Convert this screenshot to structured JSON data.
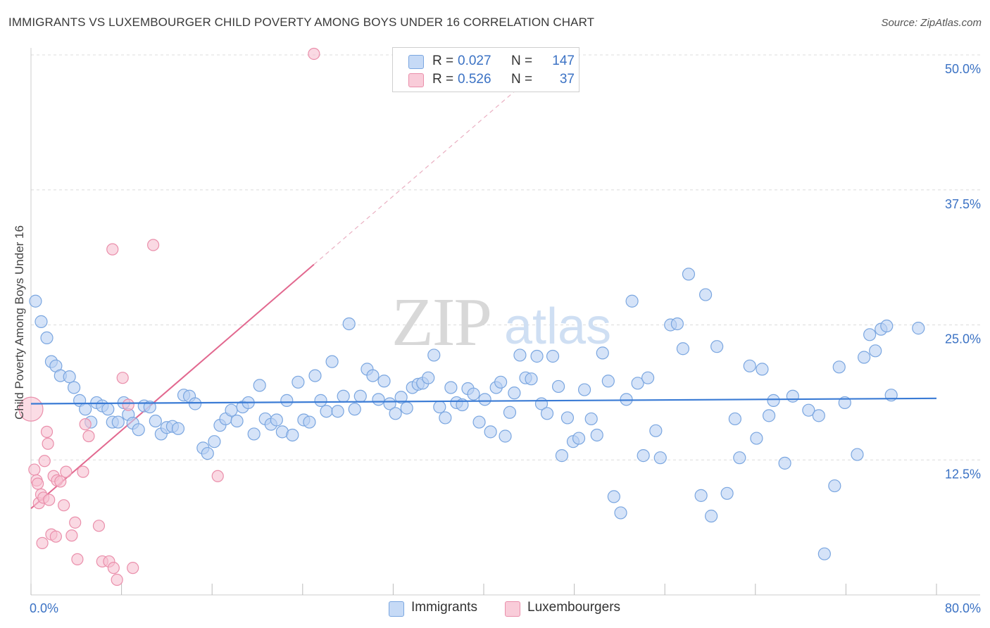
{
  "header": {
    "title": "IMMIGRANTS VS LUXEMBOURGER CHILD POVERTY AMONG BOYS UNDER 16 CORRELATION CHART",
    "source": "Source: ZipAtlas.com"
  },
  "watermark": {
    "zip": "ZIP",
    "atlas": "atlas"
  },
  "legend": {
    "rows": [
      {
        "r_label": "R =",
        "r_value": "0.027",
        "n_label": "N =",
        "n_value": "147"
      },
      {
        "r_label": "R =",
        "r_value": "0.526",
        "n_label": "N =",
        "n_value": "37"
      }
    ]
  },
  "bottom_legend": {
    "immigrants": "Immigrants",
    "luxembourgers": "Luxembourgers"
  },
  "colors": {
    "immigrants_fill": "#b9d1f3",
    "immigrants_stroke": "#7aa6e0",
    "immigrants_line": "#3a7bd5",
    "lux_fill": "#f7c0d0",
    "lux_stroke": "#ea8fab",
    "lux_line": "#e2688f",
    "axis_label": "#3b72c4",
    "grid": "#dcdcdc"
  },
  "chart_data": {
    "type": "scatter",
    "title": "IMMIGRANTS VS LUXEMBOURGER CHILD POVERTY AMONG BOYS UNDER 16 CORRELATION CHART",
    "xlabel": "",
    "ylabel": "Child Poverty Among Boys Under 16",
    "xlim": [
      0,
      80
    ],
    "ylim": [
      0,
      50
    ],
    "x_tick_labels": [
      "0.0%",
      "80.0%"
    ],
    "y_ticks": [
      {
        "value": 12.5,
        "label": "12.5%"
      },
      {
        "value": 25.0,
        "label": "25.0%"
      },
      {
        "value": 37.5,
        "label": "37.5%"
      },
      {
        "value": 50.0,
        "label": "50.0%"
      }
    ],
    "series": [
      {
        "name": "Immigrants",
        "R": 0.027,
        "N": 147,
        "trend": {
          "x": [
            0,
            80
          ],
          "y": [
            17.7,
            18.2
          ]
        },
        "points": [
          [
            0.4,
            27.2
          ],
          [
            0.9,
            25.3
          ],
          [
            1.4,
            23.8
          ],
          [
            1.8,
            21.6
          ],
          [
            2.2,
            21.2
          ],
          [
            2.6,
            20.3
          ],
          [
            3.4,
            20.2
          ],
          [
            3.8,
            19.2
          ],
          [
            4.3,
            18.0
          ],
          [
            4.8,
            17.2
          ],
          [
            5.3,
            16.0
          ],
          [
            5.8,
            17.8
          ],
          [
            6.3,
            17.5
          ],
          [
            6.8,
            17.2
          ],
          [
            7.2,
            16.0
          ],
          [
            7.7,
            16.0
          ],
          [
            8.2,
            17.8
          ],
          [
            8.6,
            16.7
          ],
          [
            9.0,
            15.9
          ],
          [
            9.5,
            15.3
          ],
          [
            10.0,
            17.5
          ],
          [
            10.5,
            17.4
          ],
          [
            11.0,
            16.1
          ],
          [
            11.5,
            14.9
          ],
          [
            12.0,
            15.5
          ],
          [
            12.5,
            15.6
          ],
          [
            13.0,
            15.4
          ],
          [
            13.5,
            18.5
          ],
          [
            14.0,
            18.4
          ],
          [
            14.5,
            17.7
          ],
          [
            15.2,
            13.6
          ],
          [
            15.6,
            13.1
          ],
          [
            16.2,
            14.2
          ],
          [
            16.7,
            15.7
          ],
          [
            17.2,
            16.3
          ],
          [
            17.7,
            17.1
          ],
          [
            18.2,
            16.1
          ],
          [
            18.7,
            17.4
          ],
          [
            19.2,
            17.8
          ],
          [
            19.7,
            14.9
          ],
          [
            20.2,
            19.4
          ],
          [
            20.7,
            16.3
          ],
          [
            21.2,
            15.8
          ],
          [
            21.7,
            16.2
          ],
          [
            22.2,
            15.1
          ],
          [
            22.6,
            18.0
          ],
          [
            23.1,
            14.8
          ],
          [
            23.6,
            19.7
          ],
          [
            24.1,
            16.2
          ],
          [
            24.6,
            16.0
          ],
          [
            25.1,
            20.3
          ],
          [
            25.6,
            18.0
          ],
          [
            26.1,
            17.0
          ],
          [
            26.6,
            21.6
          ],
          [
            27.1,
            17.0
          ],
          [
            27.6,
            18.4
          ],
          [
            28.1,
            25.1
          ],
          [
            28.6,
            17.2
          ],
          [
            29.1,
            18.4
          ],
          [
            29.7,
            20.9
          ],
          [
            30.2,
            20.3
          ],
          [
            30.7,
            18.1
          ],
          [
            31.2,
            19.8
          ],
          [
            31.7,
            17.7
          ],
          [
            32.2,
            16.8
          ],
          [
            32.7,
            18.3
          ],
          [
            33.2,
            17.3
          ],
          [
            33.7,
            19.2
          ],
          [
            34.2,
            19.5
          ],
          [
            34.6,
            19.6
          ],
          [
            35.1,
            20.1
          ],
          [
            35.6,
            22.2
          ],
          [
            36.1,
            17.4
          ],
          [
            36.6,
            16.4
          ],
          [
            37.1,
            19.2
          ],
          [
            37.6,
            17.8
          ],
          [
            38.1,
            17.6
          ],
          [
            38.6,
            19.1
          ],
          [
            39.1,
            18.6
          ],
          [
            39.6,
            16.0
          ],
          [
            40.1,
            18.1
          ],
          [
            40.6,
            15.1
          ],
          [
            41.1,
            19.2
          ],
          [
            41.5,
            19.7
          ],
          [
            41.9,
            14.7
          ],
          [
            42.3,
            16.9
          ],
          [
            42.7,
            18.7
          ],
          [
            43.2,
            22.2
          ],
          [
            43.7,
            20.1
          ],
          [
            44.2,
            20.0
          ],
          [
            44.7,
            22.1
          ],
          [
            45.1,
            17.7
          ],
          [
            45.6,
            16.8
          ],
          [
            46.1,
            22.1
          ],
          [
            46.6,
            19.3
          ],
          [
            46.9,
            12.9
          ],
          [
            47.4,
            16.4
          ],
          [
            47.9,
            14.2
          ],
          [
            48.4,
            14.5
          ],
          [
            48.9,
            19.0
          ],
          [
            49.5,
            16.3
          ],
          [
            50.0,
            14.8
          ],
          [
            50.5,
            22.4
          ],
          [
            51.0,
            19.8
          ],
          [
            51.5,
            9.1
          ],
          [
            52.1,
            7.6
          ],
          [
            52.6,
            18.1
          ],
          [
            53.1,
            27.2
          ],
          [
            53.6,
            19.6
          ],
          [
            54.1,
            12.9
          ],
          [
            54.5,
            20.1
          ],
          [
            55.2,
            15.2
          ],
          [
            55.6,
            12.7
          ],
          [
            56.5,
            25.0
          ],
          [
            57.1,
            25.1
          ],
          [
            57.6,
            22.8
          ],
          [
            58.1,
            29.7
          ],
          [
            59.2,
            9.2
          ],
          [
            59.6,
            27.8
          ],
          [
            60.1,
            7.3
          ],
          [
            60.6,
            23.0
          ],
          [
            61.5,
            9.4
          ],
          [
            62.2,
            16.3
          ],
          [
            62.6,
            12.7
          ],
          [
            63.5,
            21.2
          ],
          [
            64.1,
            14.5
          ],
          [
            64.6,
            20.9
          ],
          [
            65.2,
            16.6
          ],
          [
            65.6,
            18.0
          ],
          [
            66.6,
            12.2
          ],
          [
            67.3,
            18.4
          ],
          [
            68.7,
            17.1
          ],
          [
            69.6,
            16.6
          ],
          [
            70.1,
            3.8
          ],
          [
            71.0,
            10.1
          ],
          [
            71.4,
            21.1
          ],
          [
            71.9,
            17.8
          ],
          [
            73.0,
            13.0
          ],
          [
            73.6,
            22.0
          ],
          [
            74.1,
            24.1
          ],
          [
            74.6,
            22.6
          ],
          [
            75.1,
            24.6
          ],
          [
            75.6,
            24.9
          ],
          [
            76.0,
            18.5
          ],
          [
            78.4,
            24.7
          ]
        ]
      },
      {
        "name": "Luxembourgers",
        "R": 0.526,
        "N": 37,
        "trend": {
          "x": [
            0,
            25
          ],
          "y": [
            8.0,
            30.6
          ]
        },
        "trend_extension": {
          "x": [
            25,
            43.8
          ],
          "y": [
            30.6,
            47.6
          ]
        },
        "points": [
          [
            0.0,
            17.2
          ],
          [
            0.3,
            11.6
          ],
          [
            0.5,
            10.6
          ],
          [
            0.6,
            10.3
          ],
          [
            0.7,
            8.5
          ],
          [
            0.9,
            9.3
          ],
          [
            1.1,
            9.0
          ],
          [
            1.2,
            12.4
          ],
          [
            1.4,
            15.1
          ],
          [
            1.5,
            14.0
          ],
          [
            1.6,
            8.8
          ],
          [
            1.8,
            5.6
          ],
          [
            2.0,
            11.0
          ],
          [
            2.3,
            10.6
          ],
          [
            2.6,
            10.5
          ],
          [
            2.9,
            8.3
          ],
          [
            3.1,
            11.4
          ],
          [
            3.6,
            5.5
          ],
          [
            3.9,
            6.7
          ],
          [
            4.1,
            3.3
          ],
          [
            4.6,
            11.4
          ],
          [
            4.8,
            15.8
          ],
          [
            5.1,
            14.7
          ],
          [
            6.0,
            6.4
          ],
          [
            6.3,
            3.1
          ],
          [
            6.9,
            3.1
          ],
          [
            7.2,
            32.0
          ],
          [
            7.3,
            2.5
          ],
          [
            7.6,
            1.4
          ],
          [
            8.1,
            20.1
          ],
          [
            8.6,
            17.6
          ],
          [
            9.0,
            2.5
          ],
          [
            10.8,
            32.4
          ],
          [
            16.5,
            11.0
          ],
          [
            25.0,
            50.1
          ],
          [
            2.2,
            5.4
          ],
          [
            1.0,
            4.8
          ]
        ]
      }
    ]
  }
}
